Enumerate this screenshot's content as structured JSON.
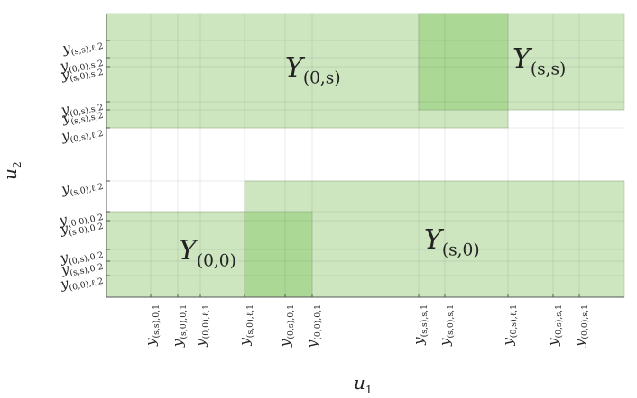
{
  "x_axis": {
    "label": {
      "base": "u",
      "sub": "1"
    },
    "ticks": [
      {
        "base": "y",
        "sub": "(s,s),0,1"
      },
      {
        "base": "y",
        "sub": "(s,0),0,1"
      },
      {
        "base": "y",
        "sub": "(0,0),ℓ,1"
      },
      {
        "base": "y",
        "sub": "(s,0),ℓ,1"
      },
      {
        "base": "y",
        "sub": "(0,s),0,1"
      },
      {
        "base": "y",
        "sub": "(0,0),0,1"
      },
      {
        "base": "y",
        "sub": "(s,s),s,1"
      },
      {
        "base": "y",
        "sub": "(s,0),s,1"
      },
      {
        "base": "y",
        "sub": "(0,s),ℓ,1"
      },
      {
        "base": "y",
        "sub": "(0,s),s,1"
      },
      {
        "base": "y",
        "sub": "(0,0),s,1"
      }
    ]
  },
  "y_axis": {
    "label": {
      "base": "u",
      "sub": "2"
    },
    "ticks": [
      {
        "base": "y",
        "sub": "(s,s),ℓ,2"
      },
      {
        "base": "y",
        "sub": "(0,0),s,2"
      },
      {
        "base": "y",
        "sub": "(s,0),s,2"
      },
      {
        "base": "y",
        "sub": "(0,s),s,2"
      },
      {
        "base": "y",
        "sub": "(s,s),s,2"
      },
      {
        "base": "y",
        "sub": "(0,s),ℓ,2"
      },
      {
        "base": "y",
        "sub": "(s,0),ℓ,2"
      },
      {
        "base": "y",
        "sub": "(0,0),0,2"
      },
      {
        "base": "y",
        "sub": "(s,0),0,2"
      },
      {
        "base": "y",
        "sub": "(0,s),0,2"
      },
      {
        "base": "y",
        "sub": "(s,s),0,2"
      },
      {
        "base": "y",
        "sub": "(0,0),ℓ,2"
      }
    ]
  },
  "regions": [
    {
      "label": {
        "base": "Y",
        "sub": "(0,s)"
      }
    },
    {
      "label": {
        "base": "Y",
        "sub": "(s,s)"
      }
    },
    {
      "label": {
        "base": "Y",
        "sub": "(0,0)"
      }
    },
    {
      "label": {
        "base": "Y",
        "sub": "(s,0)"
      }
    }
  ]
}
